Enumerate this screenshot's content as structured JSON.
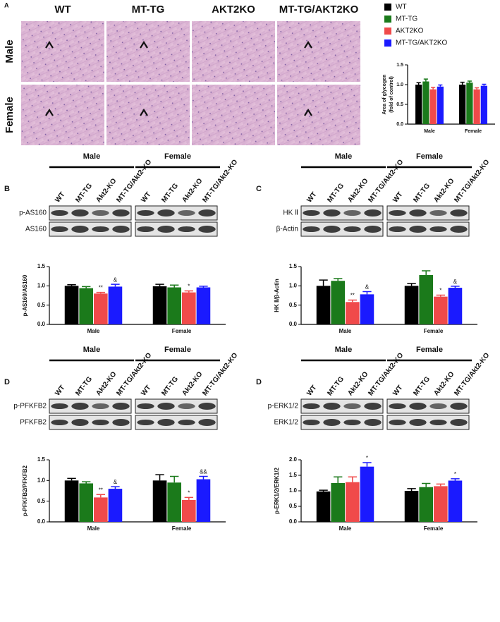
{
  "histology": {
    "letter": "A",
    "columns": [
      "WT",
      "MT-TG",
      "AKT2KO",
      "MT-TG/AKT2KO"
    ],
    "rows": [
      "Male",
      "Female"
    ]
  },
  "blots": [
    {
      "letter": "B",
      "groups": [
        "Male",
        "Female"
      ],
      "lanes": [
        "WT",
        "MT-TG",
        "Akt2-KO",
        "MT-TG/Akt2-KO"
      ],
      "rows": [
        "p-AS160",
        "AS160"
      ]
    },
    {
      "letter": "C",
      "groups": [
        "Male",
        "Female"
      ],
      "lanes": [
        "WT",
        "MT-TG",
        "Akt2-KO",
        "MT-TG/Akt2-KO"
      ],
      "rows": [
        "HK Ⅱ",
        "β-Actin"
      ]
    },
    {
      "letter": "D",
      "groups": [
        "Male",
        "Female"
      ],
      "lanes": [
        "WT",
        "MT-TG",
        "Akt2-KO",
        "MT-TG/Akt2-KO"
      ],
      "rows": [
        "p-PFKFB2",
        "PFKFB2"
      ]
    },
    {
      "letter": "D",
      "groups": [
        "Male",
        "Female"
      ],
      "lanes": [
        "WT",
        "MT-TG",
        "Akt2-KO",
        "MT-TG/Akt2-KO"
      ],
      "rows": [
        "p-ERK1/2",
        "ERK1/2"
      ]
    }
  ],
  "chart_data": [
    {
      "type": "bar",
      "ylabel": [
        "Area of glycogen",
        "(fold of control)"
      ],
      "categories": [
        "Male",
        "Female"
      ],
      "legend": "top-right",
      "ylim": [
        0,
        1.5
      ],
      "yticks": [
        {
          "value": 0,
          "label": "0.0"
        },
        {
          "value": 0.5,
          "label": "0.5"
        },
        {
          "value": 1.0,
          "label": "1.0"
        },
        {
          "value": 1.5,
          "label": "1.5"
        }
      ],
      "series": [
        {
          "name": "WT",
          "color": "#000000",
          "values": [
            1.0,
            1.0
          ],
          "errors": [
            0.05,
            0.06
          ]
        },
        {
          "name": "MT-TG",
          "color": "#1b7a1b",
          "values": [
            1.08,
            1.05
          ],
          "errors": [
            0.06,
            0.04
          ]
        },
        {
          "name": "AKT2KO",
          "color": "#f04a4a",
          "values": [
            0.88,
            0.88
          ],
          "errors": [
            0.05,
            0.04
          ]
        },
        {
          "name": "MT-TG/AKT2KO",
          "color": "#1a1aff",
          "values": [
            0.95,
            0.97
          ],
          "errors": [
            0.04,
            0.04
          ]
        }
      ]
    },
    {
      "type": "bar",
      "ylabel": [
        "p-AS160/AS160"
      ],
      "categories": [
        "Male",
        "Female"
      ],
      "ylim": [
        0,
        1.5
      ],
      "yticks": [
        {
          "value": 0,
          "label": "0.0"
        },
        {
          "value": 0.5,
          "label": "0.5"
        },
        {
          "value": 1.0,
          "label": "1.0"
        },
        {
          "value": 1.5,
          "label": "1.5"
        }
      ],
      "series": [
        {
          "color": "#000000",
          "values": [
            1.0,
            0.99
          ],
          "errors": [
            0.03,
            0.05
          ],
          "significance": [
            null,
            null
          ]
        },
        {
          "color": "#1b7a1b",
          "values": [
            0.94,
            0.96
          ],
          "errors": [
            0.04,
            0.06
          ],
          "significance": [
            null,
            null
          ]
        },
        {
          "color": "#f04a4a",
          "values": [
            0.8,
            0.83
          ],
          "errors": [
            0.03,
            0.04
          ],
          "significance": [
            "**",
            "*"
          ]
        },
        {
          "color": "#1a1aff",
          "values": [
            0.98,
            0.96
          ],
          "errors": [
            0.06,
            0.03
          ],
          "significance": [
            "&",
            null
          ]
        }
      ]
    },
    {
      "type": "bar",
      "ylabel": [
        "HK Ⅱ/β-Actin"
      ],
      "categories": [
        "Male",
        "Female"
      ],
      "ylim": [
        0,
        1.5
      ],
      "yticks": [
        {
          "value": 0,
          "label": "0.0"
        },
        {
          "value": 0.5,
          "label": "0.5"
        },
        {
          "value": 1.0,
          "label": "1.0"
        },
        {
          "value": 1.5,
          "label": "1.5"
        }
      ],
      "series": [
        {
          "color": "#000000",
          "values": [
            1.0,
            1.0
          ],
          "errors": [
            0.15,
            0.06
          ],
          "significance": [
            null,
            null
          ]
        },
        {
          "color": "#1b7a1b",
          "values": [
            1.13,
            1.28
          ],
          "errors": [
            0.06,
            0.11
          ],
          "significance": [
            null,
            null
          ]
        },
        {
          "color": "#f04a4a",
          "values": [
            0.58,
            0.72
          ],
          "errors": [
            0.05,
            0.04
          ],
          "significance": [
            "**",
            "*"
          ]
        },
        {
          "color": "#1a1aff",
          "values": [
            0.78,
            0.95
          ],
          "errors": [
            0.07,
            0.04
          ],
          "significance": [
            "&",
            "&"
          ]
        }
      ]
    },
    {
      "type": "bar",
      "ylabel": [
        "p-PFKFB2/PFKFB2"
      ],
      "categories": [
        "Male",
        "Female"
      ],
      "ylim": [
        0,
        1.5
      ],
      "yticks": [
        {
          "value": 0,
          "label": "0.0"
        },
        {
          "value": 0.5,
          "label": "0.5"
        },
        {
          "value": 1.0,
          "label": "1.0"
        },
        {
          "value": 1.5,
          "label": "1.5"
        }
      ],
      "series": [
        {
          "color": "#000000",
          "values": [
            1.0,
            1.0
          ],
          "errors": [
            0.05,
            0.14
          ],
          "significance": [
            null,
            null
          ]
        },
        {
          "color": "#1b7a1b",
          "values": [
            0.93,
            0.95
          ],
          "errors": [
            0.04,
            0.15
          ],
          "significance": [
            null,
            null
          ]
        },
        {
          "color": "#f04a4a",
          "values": [
            0.59,
            0.53
          ],
          "errors": [
            0.07,
            0.06
          ],
          "significance": [
            "**",
            "*"
          ]
        },
        {
          "color": "#1a1aff",
          "values": [
            0.8,
            1.03
          ],
          "errors": [
            0.05,
            0.07
          ],
          "significance": [
            "&",
            "&&"
          ]
        }
      ]
    },
    {
      "type": "bar",
      "ylabel": [
        "p-ERK1/2/ERK1/2"
      ],
      "categories": [
        "Male",
        "Female"
      ],
      "ylim": [
        0,
        2.0
      ],
      "yticks": [
        {
          "value": 0,
          "label": "0.0"
        },
        {
          "value": 0.5,
          "label": "0.5"
        },
        {
          "value": 1.0,
          "label": "1.0"
        },
        {
          "value": 1.5,
          "label": "1.5"
        },
        {
          "value": 2.0,
          "label": "2.0"
        }
      ],
      "series": [
        {
          "color": "#000000",
          "values": [
            0.98,
            1.0
          ],
          "errors": [
            0.04,
            0.07
          ],
          "significance": [
            null,
            null
          ]
        },
        {
          "color": "#1b7a1b",
          "values": [
            1.25,
            1.12
          ],
          "errors": [
            0.2,
            0.12
          ],
          "significance": [
            null,
            null
          ]
        },
        {
          "color": "#f04a4a",
          "values": [
            1.28,
            1.15
          ],
          "errors": [
            0.17,
            0.07
          ],
          "significance": [
            null,
            null
          ]
        },
        {
          "color": "#1a1aff",
          "values": [
            1.78,
            1.33
          ],
          "errors": [
            0.13,
            0.06
          ],
          "significance": [
            "*",
            "*"
          ]
        }
      ]
    }
  ]
}
